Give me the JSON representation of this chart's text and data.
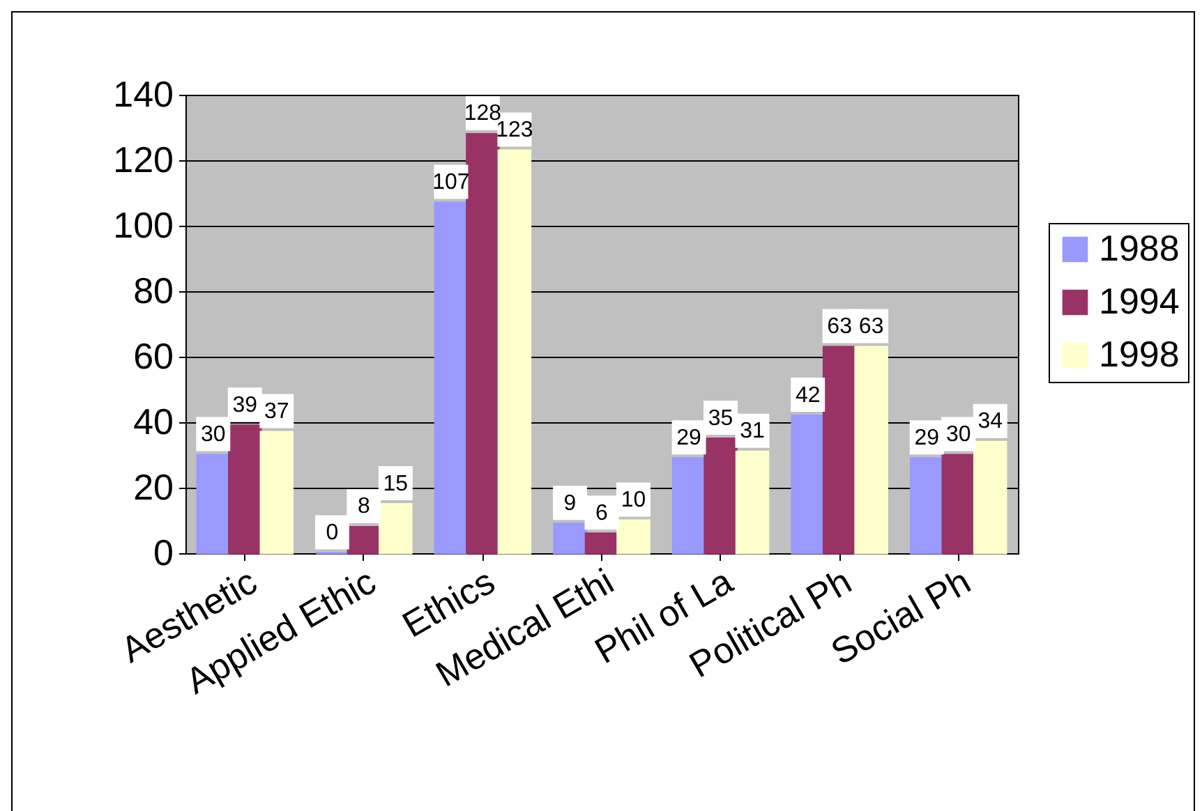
{
  "chart_data": {
    "type": "bar",
    "categories": [
      "Aesthetic",
      "Applied Ethic",
      "Ethics",
      "Medical Ethi",
      "Phil of La",
      "Political Ph",
      "Social Ph"
    ],
    "series": [
      {
        "name": "1988",
        "color": "#9999ff",
        "values": [
          30,
          0,
          107,
          9,
          29,
          42,
          29
        ]
      },
      {
        "name": "1994",
        "color": "#993366",
        "values": [
          39,
          8,
          128,
          6,
          35,
          63,
          30
        ]
      },
      {
        "name": "1998",
        "color": "#ffffcc",
        "values": [
          37,
          15,
          123,
          10,
          31,
          63,
          34
        ]
      }
    ],
    "ylim": [
      0,
      140
    ],
    "yticks": [
      0,
      20,
      40,
      60,
      80,
      100,
      120,
      140
    ],
    "grid": "y",
    "legend": "right",
    "data_labels": true
  }
}
